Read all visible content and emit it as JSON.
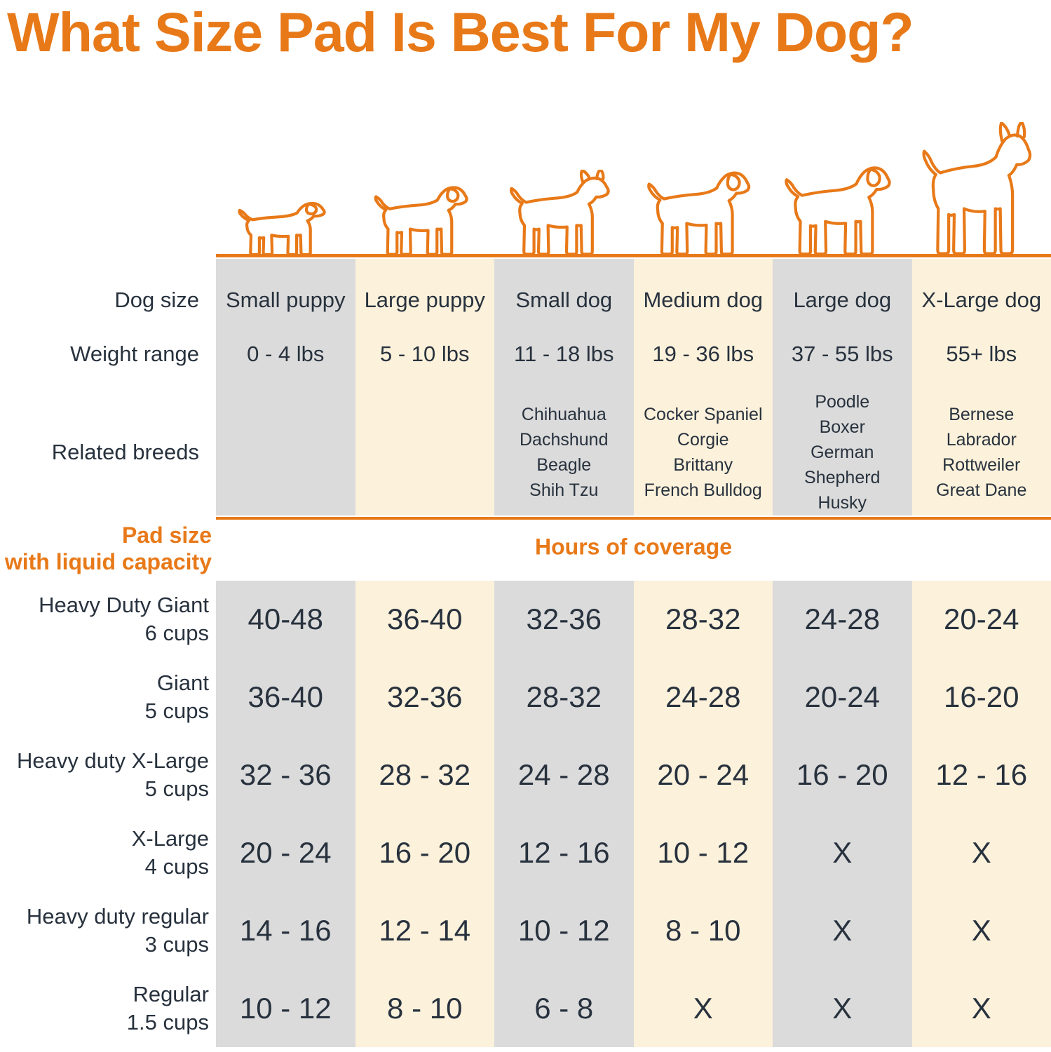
{
  "title": "What Size Pad Is Best For My Dog?",
  "side_labels": {
    "dog_size": "Dog size",
    "weight_range": "Weight range",
    "related_breeds": "Related breeds",
    "pad_size_line1": "Pad size",
    "pad_size_line2": "with liquid capacity"
  },
  "coverage_header": "Hours of coverage",
  "colors": {
    "accent_orange": "#E87918",
    "stripe_gray": "#DBDBDB",
    "stripe_cream": "#FCF1DB",
    "text_dark": "#28323E"
  },
  "chart_data": {
    "type": "table",
    "title": "What Size Pad Is Best For My Dog?",
    "cells_unit": "hours of coverage",
    "no_coverage_marker": "X",
    "columns": [
      {
        "dog_size": "Small puppy",
        "weight_range": "0 - 4 lbs",
        "related_breeds": [],
        "icon": "small-puppy-icon"
      },
      {
        "dog_size": "Large puppy",
        "weight_range": "5 - 10 lbs",
        "related_breeds": [],
        "icon": "large-puppy-icon"
      },
      {
        "dog_size": "Small dog",
        "weight_range": "11 - 18 lbs",
        "related_breeds": [
          "Chihuahua",
          "Dachshund",
          "Beagle",
          "Shih Tzu"
        ],
        "icon": "small-dog-icon"
      },
      {
        "dog_size": "Medium dog",
        "weight_range": "19 - 36 lbs",
        "related_breeds": [
          "Cocker Spaniel",
          "Corgie",
          "Brittany",
          "French Bulldog"
        ],
        "icon": "medium-dog-icon"
      },
      {
        "dog_size": "Large dog",
        "weight_range": "37 - 55 lbs",
        "related_breeds": [
          "Poodle",
          "Boxer",
          "German Shepherd",
          "Husky"
        ],
        "icon": "large-dog-icon"
      },
      {
        "dog_size": "X-Large dog",
        "weight_range": "55+ lbs",
        "related_breeds": [
          "Bernese",
          "Labrador",
          "Rottweiler",
          "Great Dane"
        ],
        "icon": "x-large-dog-icon"
      }
    ],
    "rows": [
      {
        "pad_size": "Heavy Duty Giant",
        "liquid_capacity": "6 cups",
        "hours_of_coverage": [
          "40-48",
          "36-40",
          "32-36",
          "28-32",
          "24-28",
          "20-24"
        ]
      },
      {
        "pad_size": "Giant",
        "liquid_capacity": "5 cups",
        "hours_of_coverage": [
          "36-40",
          "32-36",
          "28-32",
          "24-28",
          "20-24",
          "16-20"
        ]
      },
      {
        "pad_size": "Heavy duty X-Large",
        "liquid_capacity": "5 cups",
        "hours_of_coverage": [
          "32 - 36",
          "28 - 32",
          "24 - 28",
          "20 - 24",
          "16 - 20",
          "12 - 16"
        ]
      },
      {
        "pad_size": "X-Large",
        "liquid_capacity": "4 cups",
        "hours_of_coverage": [
          "20 - 24",
          "16 - 20",
          "12 - 16",
          "10 - 12",
          "X",
          "X"
        ]
      },
      {
        "pad_size": "Heavy duty regular",
        "liquid_capacity": "3 cups",
        "hours_of_coverage": [
          "14 - 16",
          "12 - 14",
          "10 - 12",
          "8 - 10",
          "X",
          "X"
        ]
      },
      {
        "pad_size": "Regular",
        "liquid_capacity": "1.5 cups",
        "hours_of_coverage": [
          "10 - 12",
          "8 - 10",
          "6 - 8",
          "X",
          "X",
          "X"
        ]
      }
    ]
  }
}
